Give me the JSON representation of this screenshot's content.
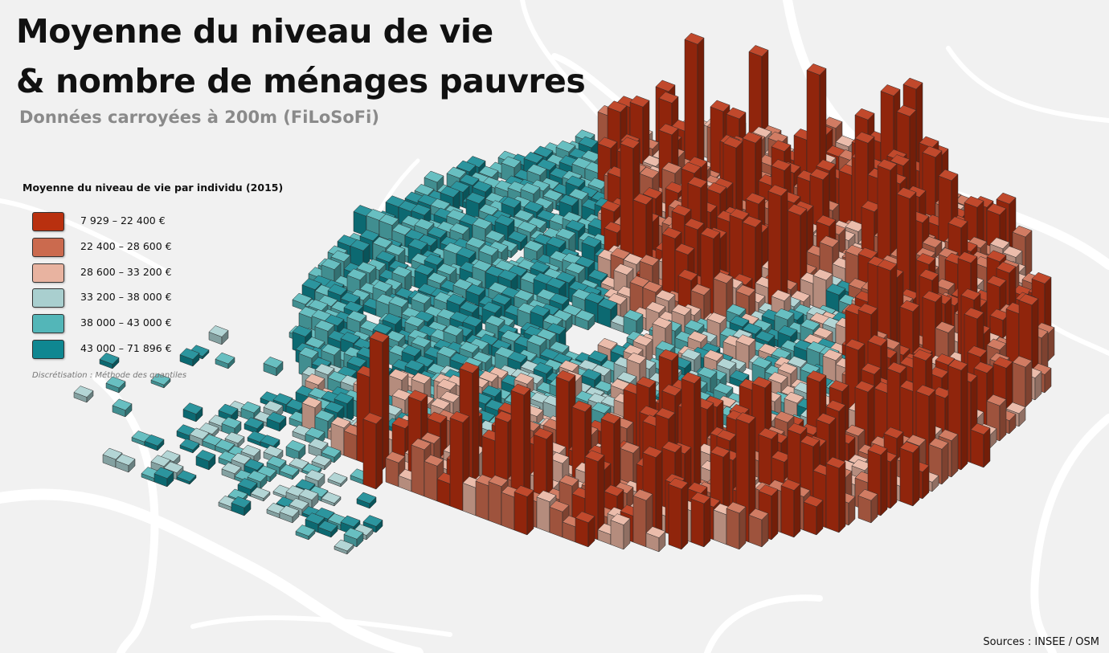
{
  "map": {
    "title_line1": "Moyenne du niveau de vie",
    "title_line2": "& nombre de ménages pauvres",
    "subtitle": "Données carroyées à 200m (FiLoSoFi)",
    "source": "Sources : INSEE / OSM"
  },
  "legend": {
    "title": "Moyenne du niveau de vie par individu (2015)",
    "classes": [
      {
        "label": "7 929 – 22 400 €",
        "color": "#b9300f"
      },
      {
        "label": "22 400 – 28 600 €",
        "color": "#cb6a4e"
      },
      {
        "label": "28 600 – 33 200 €",
        "color": "#e8b3a0"
      },
      {
        "label": "33 200 – 38 000 €",
        "color": "#a9cfcf"
      },
      {
        "label": "38 000 – 43 000 €",
        "color": "#53b6b8"
      },
      {
        "label": "43 000 – 71 896 €",
        "color": "#0f8791"
      }
    ],
    "note": "Discrétisation  : Méthode des quantiles"
  },
  "basemap_color": "#f1f1f1"
}
